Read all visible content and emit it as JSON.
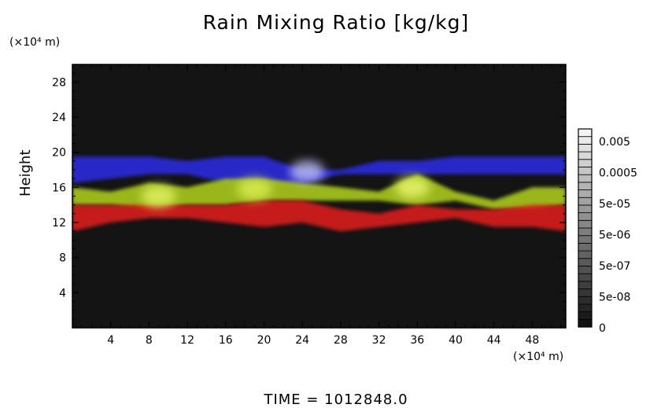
{
  "chart_data": {
    "type": "heatmap",
    "title": "Rain Mixing Ratio [kg/kg]",
    "ylabel": "Height",
    "xlabel": "",
    "x_unit": "(×10⁴ m)",
    "y_unit": "(×10⁴ m)",
    "x_ticks": [
      4,
      8,
      12,
      16,
      20,
      24,
      28,
      32,
      36,
      40,
      44,
      48
    ],
    "y_ticks": [
      4,
      8,
      12,
      16,
      20,
      24,
      28
    ],
    "xlim": [
      0,
      51.5
    ],
    "ylim": [
      0,
      30
    ],
    "background_color": "#141414",
    "colorbar": {
      "labels": [
        "0",
        "5e-08",
        "5e-07",
        "5e-06",
        "5e-05",
        "0.0005",
        "0.005"
      ],
      "levels": [
        0,
        5e-08,
        5e-07,
        5e-06,
        5e-05,
        0.0005,
        0.005
      ]
    },
    "layers": [
      {
        "color": "#2a2ad8",
        "x": [
          0,
          4,
          8,
          12,
          16,
          20,
          24,
          28,
          32,
          36,
          40,
          44,
          48,
          51.5
        ],
        "y_bottom": [
          16.5,
          17.0,
          17.5,
          17.5,
          16.5,
          16.0,
          16.5,
          17.5,
          17.5,
          17.5,
          17.5,
          17.5,
          17.5,
          17.5
        ],
        "y_top": [
          19.5,
          19.5,
          19.5,
          19.0,
          19.5,
          19.5,
          18.0,
          18.0,
          19.0,
          19.0,
          19.5,
          19.5,
          19.5,
          19.5
        ]
      },
      {
        "color": "#a6c41e",
        "x": [
          0,
          4,
          8,
          12,
          16,
          20,
          24,
          28,
          32,
          36,
          40,
          44,
          48,
          51.5
        ],
        "y_bottom": [
          14.0,
          14.0,
          13.5,
          14.0,
          14.0,
          14.5,
          14.5,
          14.5,
          14.5,
          14.0,
          14.5,
          13.5,
          13.5,
          14.0
        ],
        "y_top": [
          16.0,
          15.5,
          16.5,
          16.0,
          17.0,
          17.0,
          16.5,
          16.0,
          15.5,
          17.5,
          15.5,
          14.5,
          16.0,
          16.0
        ]
      },
      {
        "color": "#d41c1c",
        "x": [
          0,
          4,
          8,
          12,
          16,
          20,
          24,
          28,
          32,
          36,
          40,
          44,
          48,
          51.5
        ],
        "y_bottom": [
          11.0,
          12.0,
          12.5,
          12.5,
          12.0,
          11.5,
          12.0,
          11.0,
          11.5,
          12.0,
          12.5,
          11.5,
          11.5,
          11.0
        ],
        "y_top": [
          14.0,
          14.0,
          14.0,
          14.0,
          14.0,
          14.5,
          14.5,
          13.5,
          13.0,
          14.0,
          13.5,
          13.5,
          14.0,
          14.0
        ]
      }
    ],
    "highlight_blobs": [
      {
        "color": "#e0f060",
        "x": 9,
        "y": 15.0
      },
      {
        "color": "#d8ec50",
        "x": 19,
        "y": 15.8
      },
      {
        "color": "#e6f46a",
        "x": 35.5,
        "y": 16.0
      },
      {
        "color": "#b8b8f4",
        "x": 24.5,
        "y": 17.8
      }
    ]
  },
  "footer": {
    "time_label": "TIME = 1012848.0"
  }
}
